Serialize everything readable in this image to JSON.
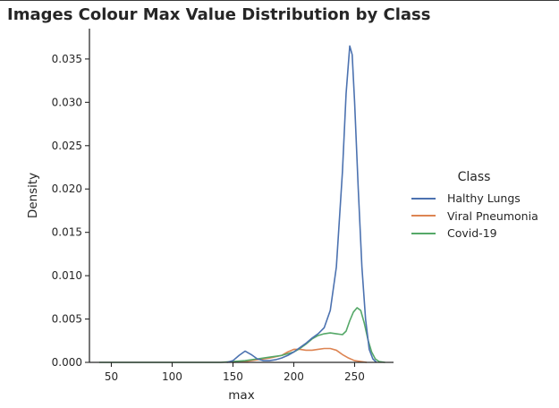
{
  "chart_data": {
    "type": "line",
    "title": "Images Colour Max Value Distribution by Class",
    "xlabel": "max",
    "ylabel": "Density",
    "xlim": [
      32,
      282
    ],
    "ylim": [
      0,
      0.0385
    ],
    "xticks": [
      50,
      100,
      150,
      200,
      250
    ],
    "yticks": [
      0.0,
      0.005,
      0.01,
      0.015,
      0.02,
      0.025,
      0.03,
      0.035
    ],
    "ytick_labels": [
      "0.000",
      "0.005",
      "0.010",
      "0.015",
      "0.020",
      "0.025",
      "0.030",
      "0.035"
    ],
    "legend": {
      "title": "Class",
      "placement": "right"
    },
    "grid": false,
    "series": [
      {
        "name": "Halthy Lungs",
        "color": "#4c72b0",
        "points": [
          [
            145,
            0
          ],
          [
            150,
            0.0002
          ],
          [
            155,
            0.0008
          ],
          [
            160,
            0.0013
          ],
          [
            165,
            0.0009
          ],
          [
            170,
            0.0004
          ],
          [
            175,
            0.0002
          ],
          [
            180,
            0.0002
          ],
          [
            185,
            0.0003
          ],
          [
            190,
            0.0005
          ],
          [
            195,
            0.0008
          ],
          [
            200,
            0.0012
          ],
          [
            205,
            0.0017
          ],
          [
            210,
            0.0022
          ],
          [
            215,
            0.0028
          ],
          [
            220,
            0.0033
          ],
          [
            225,
            0.004
          ],
          [
            230,
            0.006
          ],
          [
            235,
            0.011
          ],
          [
            240,
            0.022
          ],
          [
            243,
            0.031
          ],
          [
            246,
            0.0365
          ],
          [
            248,
            0.0355
          ],
          [
            250,
            0.03
          ],
          [
            253,
            0.02
          ],
          [
            256,
            0.011
          ],
          [
            259,
            0.005
          ],
          [
            262,
            0.0015
          ],
          [
            265,
            0.0004
          ],
          [
            268,
            0
          ]
        ]
      },
      {
        "name": "Viral Pneumonia",
        "color": "#dd8452",
        "points": [
          [
            150,
            0
          ],
          [
            160,
            0.0001
          ],
          [
            170,
            0.0003
          ],
          [
            180,
            0.0005
          ],
          [
            190,
            0.0008
          ],
          [
            195,
            0.0012
          ],
          [
            200,
            0.0015
          ],
          [
            205,
            0.0015
          ],
          [
            210,
            0.0014
          ],
          [
            215,
            0.0014
          ],
          [
            220,
            0.0015
          ],
          [
            225,
            0.0016
          ],
          [
            230,
            0.0016
          ],
          [
            235,
            0.0014
          ],
          [
            240,
            0.0009
          ],
          [
            245,
            0.0005
          ],
          [
            250,
            0.0002
          ],
          [
            255,
            0.0001
          ],
          [
            260,
            0
          ]
        ]
      },
      {
        "name": "Covid-19",
        "color": "#55a868",
        "points": [
          [
            40,
            0
          ],
          [
            100,
            0
          ],
          [
            140,
            0
          ],
          [
            150,
            0.0001
          ],
          [
            160,
            0.0002
          ],
          [
            170,
            0.0004
          ],
          [
            180,
            0.0006
          ],
          [
            190,
            0.0008
          ],
          [
            200,
            0.0012
          ],
          [
            205,
            0.0016
          ],
          [
            210,
            0.0021
          ],
          [
            215,
            0.0027
          ],
          [
            220,
            0.0031
          ],
          [
            225,
            0.0033
          ],
          [
            230,
            0.0034
          ],
          [
            235,
            0.0033
          ],
          [
            240,
            0.0032
          ],
          [
            243,
            0.0036
          ],
          [
            246,
            0.0048
          ],
          [
            249,
            0.0058
          ],
          [
            252,
            0.0063
          ],
          [
            255,
            0.006
          ],
          [
            258,
            0.0045
          ],
          [
            261,
            0.0026
          ],
          [
            264,
            0.0012
          ],
          [
            267,
            0.0004
          ],
          [
            270,
            0.0001
          ],
          [
            275,
            0
          ]
        ]
      }
    ]
  }
}
